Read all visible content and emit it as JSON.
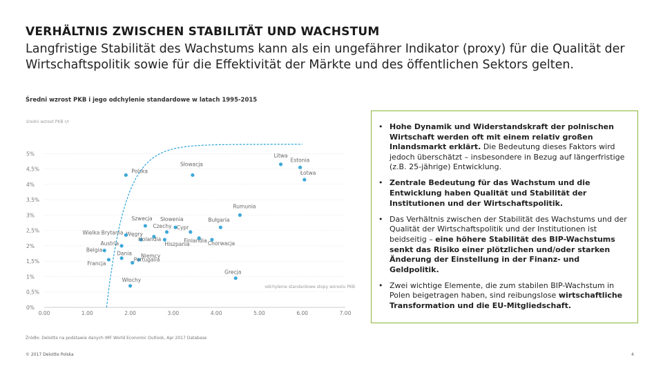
{
  "header": {
    "title": "VERHÄLTNIS ZWISCHEN STABILITÄT UND WACHSTUM",
    "intro": "Langfristige Stabilität des Wachstums kann als ein ungefährer Indikator (proxy) für die Qualität der Wirtschaftspolitik sowie für die Effektivität der Märkte und des öffentlichen Sektors gelten."
  },
  "callout": {
    "bullets": [
      {
        "strong": "Hohe Dynamik und Widerstandskraft der polnischen Wirtschaft werden oft mit einem relativ großen Inlandsmarkt erklärt.",
        "rest": " Die Bedeutung dieses Faktors wird jedoch überschätzt – insbesondere in Bezug auf längerfristige (z.B. 25-jährige) Entwicklung."
      },
      {
        "strong": "Zentrale Bedeutung für das Wachstum und die Entwicklung haben Qualität und Stabilität der Institutionen und der Wirtschaftspolitik.",
        "rest": ""
      },
      {
        "pre": "Das Verhältnis zwischen der Stabilität des Wachstums und der Qualität der Wirtschaftspolitik und der Institutionen ist beidseitig – ",
        "strong": "eine höhere Stabilität des BIP-Wachstums senkt das Risiko einer plötzlichen und/oder starken Änderung der Einstellung in der Finanz- und Geldpolitik.",
        "rest": ""
      },
      {
        "pre": "Zwei wichtige Elemente, die zum stabilen BIP-Wachstum in Polen beigetragen haben, sind reibungslose ",
        "strong": "wirtschaftliche Transformation und die EU-Mitgliedschaft.",
        "rest": ""
      }
    ]
  },
  "footer": {
    "copyright": "© 2017 Deloitte Polska",
    "page": "4"
  },
  "chart_data": {
    "type": "scatter",
    "title": "Średni wzrost PKB i jego odchylenie standardowe w latach 1995-2015",
    "ylabel": "średni wzrost PKB r/r",
    "xlabel": "odchylenie standardowe stopy wzrostu PKB",
    "source": "Źródło: Deloitte na podstawie danych IMF World Economic Outlook, Apr 2017 Database",
    "xlim": [
      0,
      7
    ],
    "ylim": [
      0,
      5.5
    ],
    "x_ticks": [
      "0.00",
      "1.00",
      "2.00",
      "3.00",
      "4.00",
      "5.00",
      "6.00",
      "7.00"
    ],
    "y_ticks": [
      "0%",
      "0,5%",
      "1%",
      "1,5%",
      "2%",
      "2,5%",
      "3%",
      "3,5%",
      "4%",
      "4,5%",
      "5%"
    ],
    "points_color": "#3ea8d8",
    "curve_color": "#29a3d9",
    "points": [
      {
        "label": "Polska",
        "x": 1.9,
        "y": 4.3
      },
      {
        "label": "Słowacja",
        "x": 3.45,
        "y": 4.3
      },
      {
        "label": "Litwa",
        "x": 5.5,
        "y": 4.65
      },
      {
        "label": "Estonia",
        "x": 5.95,
        "y": 4.55
      },
      {
        "label": "Łotwa",
        "x": 6.05,
        "y": 4.15
      },
      {
        "label": "Rumunia",
        "x": 4.55,
        "y": 3.0
      },
      {
        "label": "Szwecja",
        "x": 2.35,
        "y": 2.65
      },
      {
        "label": "Słowenia",
        "x": 3.05,
        "y": 2.6
      },
      {
        "label": "Bułgaria",
        "x": 4.1,
        "y": 2.6
      },
      {
        "label": "Czechy",
        "x": 2.85,
        "y": 2.45
      },
      {
        "label": "Cypr",
        "x": 3.4,
        "y": 2.45
      },
      {
        "label": "Węgry",
        "x": 2.55,
        "y": 2.3
      },
      {
        "label": "Finlandia",
        "x": 3.6,
        "y": 2.25
      },
      {
        "label": "Wielka Brytania",
        "x": 1.9,
        "y": 2.35
      },
      {
        "label": "Holandia",
        "x": 2.25,
        "y": 2.2
      },
      {
        "label": "Hiszpania",
        "x": 2.8,
        "y": 2.2
      },
      {
        "label": "Chorwacja",
        "x": 3.9,
        "y": 2.2
      },
      {
        "label": "Austria",
        "x": 1.8,
        "y": 2.0
      },
      {
        "label": "Belgia",
        "x": 1.4,
        "y": 1.85
      },
      {
        "label": "Niemcy",
        "x": 2.2,
        "y": 1.55
      },
      {
        "label": "Dania",
        "x": 1.8,
        "y": 1.6
      },
      {
        "label": "Francja",
        "x": 1.5,
        "y": 1.55
      },
      {
        "label": "Portugalia",
        "x": 2.05,
        "y": 1.45
      },
      {
        "label": "Grecja",
        "x": 4.45,
        "y": 0.95
      },
      {
        "label": "Włochy",
        "x": 2.0,
        "y": 0.7
      }
    ]
  }
}
